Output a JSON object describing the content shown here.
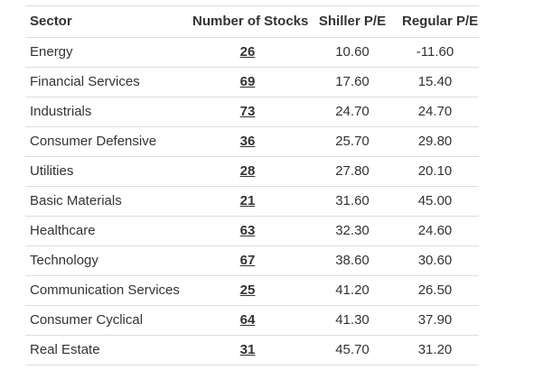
{
  "table": {
    "columns": [
      "Sector",
      "Number of Stocks",
      "Shiller P/E",
      "Regular P/E"
    ],
    "rows": [
      {
        "sector": "Energy",
        "stocks": "26",
        "shiller": "10.60",
        "regular": "-11.60"
      },
      {
        "sector": "Financial Services",
        "stocks": "69",
        "shiller": "17.60",
        "regular": "15.40"
      },
      {
        "sector": "Industrials",
        "stocks": "73",
        "shiller": "24.70",
        "regular": "24.70"
      },
      {
        "sector": "Consumer Defensive",
        "stocks": "36",
        "shiller": "25.70",
        "regular": "29.80"
      },
      {
        "sector": "Utilities",
        "stocks": "28",
        "shiller": "27.80",
        "regular": "20.10"
      },
      {
        "sector": "Basic Materials",
        "stocks": "21",
        "shiller": "31.60",
        "regular": "45.00"
      },
      {
        "sector": "Healthcare",
        "stocks": "63",
        "shiller": "32.30",
        "regular": "24.60"
      },
      {
        "sector": "Technology",
        "stocks": "67",
        "shiller": "38.60",
        "regular": "30.60"
      },
      {
        "sector": "Communication Services",
        "stocks": "25",
        "shiller": "41.20",
        "regular": "26.50"
      },
      {
        "sector": "Consumer Cyclical",
        "stocks": "64",
        "shiller": "41.30",
        "regular": "37.90"
      },
      {
        "sector": "Real Estate",
        "stocks": "31",
        "shiller": "45.70",
        "regular": "31.20"
      }
    ]
  },
  "colors": {
    "background": "#ffffff",
    "text": "#333333",
    "border": "#dddddd",
    "link": "#333333"
  }
}
